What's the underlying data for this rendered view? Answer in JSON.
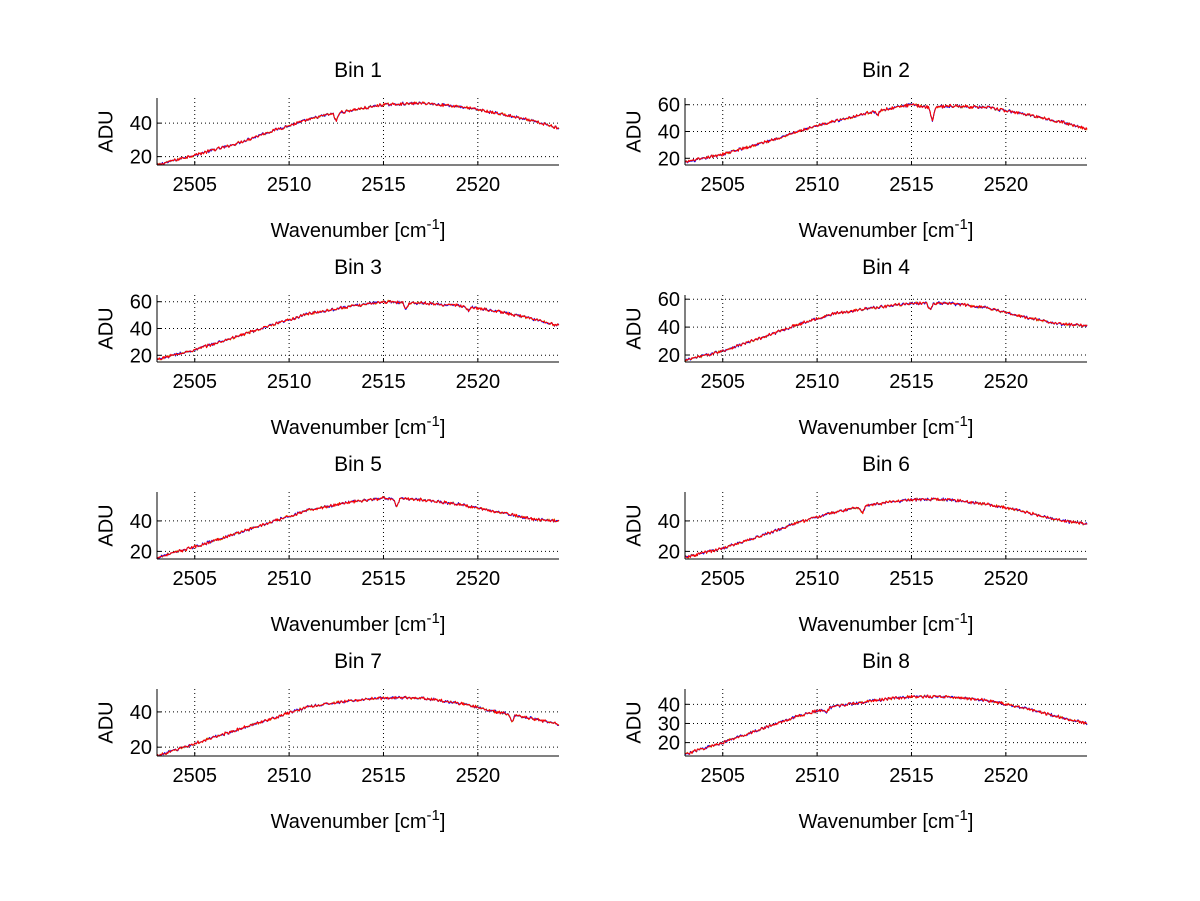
{
  "figure": {
    "background": "#ffffff",
    "trace_colors": [
      "#ff0000",
      "#0000ff",
      "#cc9900"
    ]
  },
  "chart_data": [
    {
      "type": "line",
      "title": "Bin 1",
      "xlabel": "Wavenumber [cm",
      "xlabel_sup": "-1",
      "xlabel_close": "]",
      "ylabel": "ADU",
      "xlim": [
        2503,
        2524.3
      ],
      "ylim": [
        15,
        55
      ],
      "xticks": [
        2505,
        2510,
        2515,
        2520
      ],
      "yticks": [
        20,
        40
      ],
      "grid": true,
      "x": [
        2503,
        2505,
        2507,
        2509,
        2511,
        2512,
        2513,
        2515,
        2517,
        2519,
        2521,
        2523,
        2524.3
      ],
      "y": [
        15,
        21,
        27,
        35,
        42,
        45,
        47,
        51,
        52,
        50,
        46,
        41,
        37
      ],
      "dips": [
        [
          2512.5,
          41
        ]
      ]
    },
    {
      "type": "line",
      "title": "Bin 2",
      "xlabel": "Wavenumber [cm",
      "xlabel_sup": "-1",
      "xlabel_close": "]",
      "ylabel": "ADU",
      "xlim": [
        2503,
        2524.3
      ],
      "ylim": [
        15,
        65
      ],
      "xticks": [
        2505,
        2510,
        2515,
        2520
      ],
      "yticks": [
        20,
        40,
        60
      ],
      "grid": true,
      "x": [
        2503,
        2505,
        2507,
        2509,
        2511,
        2513,
        2515,
        2516,
        2517,
        2519,
        2521,
        2523,
        2524.3
      ],
      "y": [
        17,
        23,
        31,
        40,
        48,
        55,
        60,
        58,
        59,
        58,
        53,
        47,
        42
      ],
      "dips": [
        [
          2516.1,
          48
        ],
        [
          2513.2,
          52
        ]
      ]
    },
    {
      "type": "line",
      "title": "Bin 3",
      "xlabel": "Wavenumber [cm",
      "xlabel_sup": "-1",
      "xlabel_close": "]",
      "ylabel": "ADU",
      "xlim": [
        2503,
        2524.3
      ],
      "ylim": [
        15,
        65
      ],
      "xticks": [
        2505,
        2510,
        2515,
        2520
      ],
      "yticks": [
        20,
        40,
        60
      ],
      "grid": true,
      "x": [
        2503,
        2505,
        2507,
        2509,
        2511,
        2513,
        2515,
        2517,
        2519,
        2521,
        2523,
        2524.3
      ],
      "y": [
        17,
        24,
        33,
        42,
        51,
        56,
        60,
        59,
        57,
        53,
        47,
        42
      ],
      "dips": [
        [
          2516.2,
          54
        ],
        [
          2519.5,
          53
        ]
      ]
    },
    {
      "type": "line",
      "title": "Bin 4",
      "xlabel": "Wavenumber [cm",
      "xlabel_sup": "-1",
      "xlabel_close": "]",
      "ylabel": "ADU",
      "xlim": [
        2503,
        2524.3
      ],
      "ylim": [
        15,
        63
      ],
      "xticks": [
        2505,
        2510,
        2515,
        2520
      ],
      "yticks": [
        20,
        40,
        60
      ],
      "grid": true,
      "x": [
        2503,
        2505,
        2507,
        2509,
        2511,
        2513,
        2515,
        2517,
        2519,
        2521,
        2523,
        2524.3
      ],
      "y": [
        16,
        23,
        32,
        42,
        50,
        54,
        57,
        57,
        54,
        47,
        42,
        41
      ],
      "dips": [
        [
          2516,
          52
        ]
      ]
    },
    {
      "type": "line",
      "title": "Bin 5",
      "xlabel": "Wavenumber [cm",
      "xlabel_sup": "-1",
      "xlabel_close": "]",
      "ylabel": "ADU",
      "xlim": [
        2503,
        2524.3
      ],
      "ylim": [
        15,
        59
      ],
      "xticks": [
        2505,
        2510,
        2515,
        2520
      ],
      "yticks": [
        20,
        40
      ],
      "grid": true,
      "x": [
        2503,
        2505,
        2507,
        2509,
        2511,
        2513,
        2515,
        2517,
        2519,
        2521,
        2523,
        2524.3
      ],
      "y": [
        16,
        23,
        31,
        39,
        47,
        52,
        55,
        54,
        51,
        46,
        41,
        40
      ],
      "dips": [
        [
          2515.7,
          49
        ]
      ]
    },
    {
      "type": "line",
      "title": "Bin 6",
      "xlabel": "Wavenumber [cm",
      "xlabel_sup": "-1",
      "xlabel_close": "]",
      "ylabel": "ADU",
      "xlim": [
        2503,
        2524.3
      ],
      "ylim": [
        15,
        59
      ],
      "xticks": [
        2505,
        2510,
        2515,
        2520
      ],
      "yticks": [
        20,
        40
      ],
      "grid": true,
      "x": [
        2503,
        2505,
        2507,
        2509,
        2511,
        2513,
        2515,
        2517,
        2519,
        2521,
        2523,
        2524.3
      ],
      "y": [
        16,
        22,
        30,
        39,
        46,
        51,
        54,
        54,
        51,
        46,
        40,
        38
      ],
      "dips": [
        [
          2512.4,
          45
        ]
      ]
    },
    {
      "type": "line",
      "title": "Bin 7",
      "xlabel": "Wavenumber [cm",
      "xlabel_sup": "-1",
      "xlabel_close": "]",
      "ylabel": "ADU",
      "xlim": [
        2503,
        2524.3
      ],
      "ylim": [
        15,
        53
      ],
      "xticks": [
        2505,
        2510,
        2515,
        2520
      ],
      "yticks": [
        20,
        40
      ],
      "grid": true,
      "x": [
        2503,
        2505,
        2507,
        2509,
        2511,
        2513,
        2515,
        2517,
        2519,
        2521,
        2523,
        2524.3
      ],
      "y": [
        15,
        22,
        29,
        36,
        43,
        46,
        48,
        48,
        45,
        40,
        36,
        33
      ],
      "dips": [
        [
          2521.8,
          34
        ]
      ]
    },
    {
      "type": "line",
      "title": "Bin 8",
      "xlabel": "Wavenumber [cm",
      "xlabel_sup": "-1",
      "xlabel_close": "]",
      "ylabel": "ADU",
      "xlim": [
        2503,
        2524.3
      ],
      "ylim": [
        13,
        48
      ],
      "xticks": [
        2505,
        2510,
        2515,
        2520
      ],
      "yticks": [
        20,
        30,
        40
      ],
      "grid": true,
      "x": [
        2503,
        2505,
        2507,
        2509,
        2511,
        2513,
        2515,
        2517,
        2519,
        2521,
        2523,
        2524.3
      ],
      "y": [
        14,
        20,
        27,
        34,
        39,
        42,
        44,
        44,
        42,
        38,
        33,
        30
      ],
      "dips": [
        [
          2510.5,
          36
        ]
      ]
    }
  ]
}
